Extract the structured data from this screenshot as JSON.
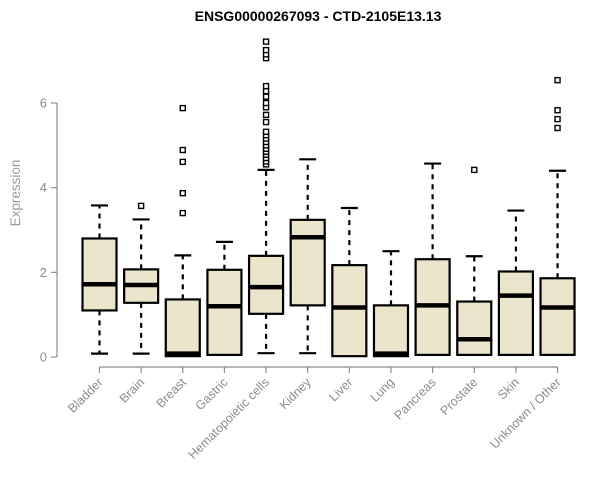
{
  "chart_data": {
    "type": "boxplot",
    "title": "ENSG00000267093 - CTD-2105E13.13",
    "ylabel": "Expression",
    "xlabel": "",
    "yticks": [
      0,
      2,
      4,
      6
    ],
    "ylim": [
      0,
      7.6
    ],
    "grid": false,
    "legend": "none",
    "categories": [
      "Bladder",
      "Brain",
      "Breast",
      "Gastric",
      "Hematopoietic cells",
      "Kidney",
      "Liver",
      "Lung",
      "Pancreas",
      "Prostate",
      "Skin",
      "Unknown / Other"
    ],
    "boxes": [
      {
        "label": "Bladder",
        "whisker_low": 0.08,
        "q1": 1.1,
        "median": 1.72,
        "q3": 2.8,
        "whisker_high": 3.58,
        "outliers": []
      },
      {
        "label": "Brain",
        "whisker_low": 0.08,
        "q1": 1.28,
        "median": 1.7,
        "q3": 2.07,
        "whisker_high": 3.25,
        "outliers": [
          3.57
        ]
      },
      {
        "label": "Breast",
        "whisker_low": 0.02,
        "q1": 0.02,
        "median": 0.08,
        "q3": 1.36,
        "whisker_high": 2.4,
        "outliers": [
          3.4,
          3.87,
          4.61,
          4.89,
          5.88
        ]
      },
      {
        "label": "Gastric",
        "whisker_low": 0.05,
        "q1": 0.05,
        "median": 1.2,
        "q3": 2.06,
        "whisker_high": 2.72,
        "outliers": []
      },
      {
        "label": "Hematopoietic cells",
        "whisker_low": 0.09,
        "q1": 1.02,
        "median": 1.65,
        "q3": 2.39,
        "whisker_high": 4.42,
        "outliers": [
          4.55,
          4.62,
          4.7,
          4.78,
          4.85,
          4.92,
          5.0,
          5.08,
          5.16,
          5.24,
          5.32,
          5.55,
          5.72,
          5.9,
          6.0,
          6.15,
          6.28,
          6.4,
          7.06,
          7.15,
          7.25,
          7.45
        ]
      },
      {
        "label": "Kidney",
        "whisker_low": 0.09,
        "q1": 1.22,
        "median": 2.83,
        "q3": 3.24,
        "whisker_high": 4.67,
        "outliers": []
      },
      {
        "label": "Liver",
        "whisker_low": 0.02,
        "q1": 0.02,
        "median": 1.17,
        "q3": 2.17,
        "whisker_high": 3.52,
        "outliers": []
      },
      {
        "label": "Lung",
        "whisker_low": 0.02,
        "q1": 0.02,
        "median": 0.08,
        "q3": 1.22,
        "whisker_high": 2.5,
        "outliers": []
      },
      {
        "label": "Pancreas",
        "whisker_low": 0.05,
        "q1": 0.05,
        "median": 1.22,
        "q3": 2.31,
        "whisker_high": 4.57,
        "outliers": []
      },
      {
        "label": "Prostate",
        "whisker_low": 0.05,
        "q1": 0.05,
        "median": 0.42,
        "q3": 1.31,
        "whisker_high": 2.38,
        "outliers": [
          4.42
        ]
      },
      {
        "label": "Skin",
        "whisker_low": 0.05,
        "q1": 0.05,
        "median": 1.45,
        "q3": 2.02,
        "whisker_high": 3.46,
        "outliers": []
      },
      {
        "label": "Unknown / Other",
        "whisker_low": 0.05,
        "q1": 0.05,
        "median": 1.17,
        "q3": 1.86,
        "whisker_high": 4.4,
        "outliers": [
          5.41,
          5.62,
          5.83,
          6.54
        ]
      }
    ],
    "colors": {
      "box_fill": "#ebe6cb",
      "box_border": "#000000",
      "median": "#000000",
      "axis": "#8c8c8c",
      "ylabel_text": "#9a9a9a",
      "title_text": "#000000",
      "background": "#ffffff"
    }
  }
}
